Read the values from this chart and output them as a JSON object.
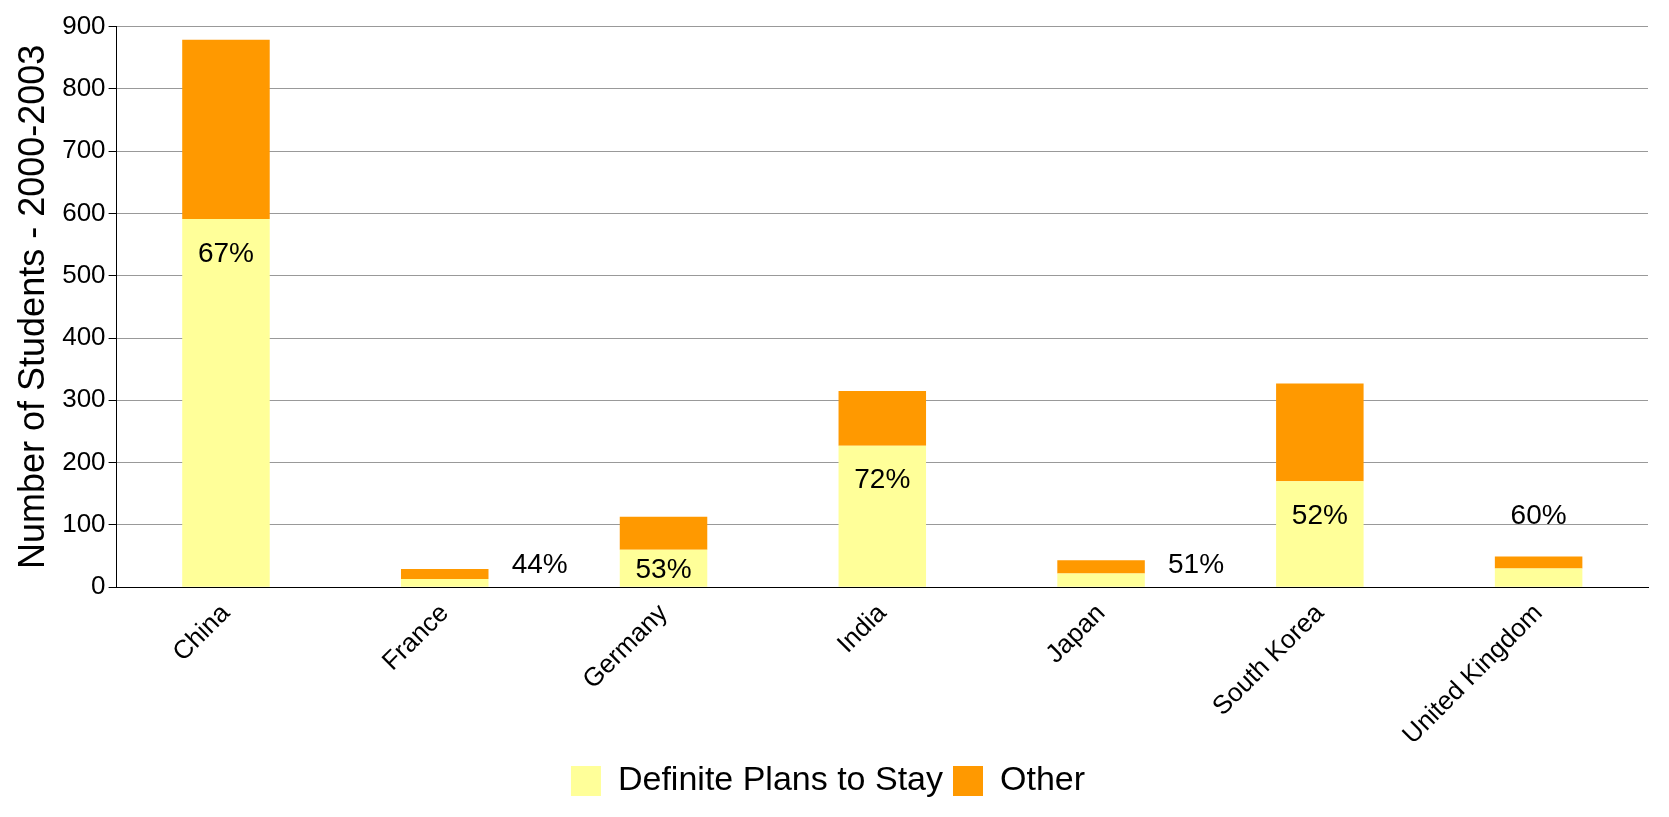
{
  "chart_data": {
    "type": "bar",
    "stacked": true,
    "ylabel": "Number of Students - 2000-2003",
    "categories": [
      "China",
      "France",
      "Germany",
      "India",
      "Japan",
      "South Korea",
      "United Kingdom"
    ],
    "series": [
      {
        "name": "Definite Plans to Stay",
        "color": "#ffff99",
        "values": [
          591,
          13,
          60,
          227,
          22,
          170,
          30
        ]
      },
      {
        "name": "Other",
        "color": "#ff9900",
        "values": [
          288,
          16,
          53,
          88,
          21,
          157,
          19
        ]
      }
    ],
    "ylim": [
      0,
      900
    ],
    "yticks": [
      0,
      100,
      200,
      300,
      400,
      500,
      600,
      700,
      800,
      900
    ],
    "grid": "y",
    "legend": "bottom",
    "annotations": [
      "67%",
      "44%",
      "53%",
      "72%",
      "51%",
      "52%",
      "60%"
    ]
  }
}
